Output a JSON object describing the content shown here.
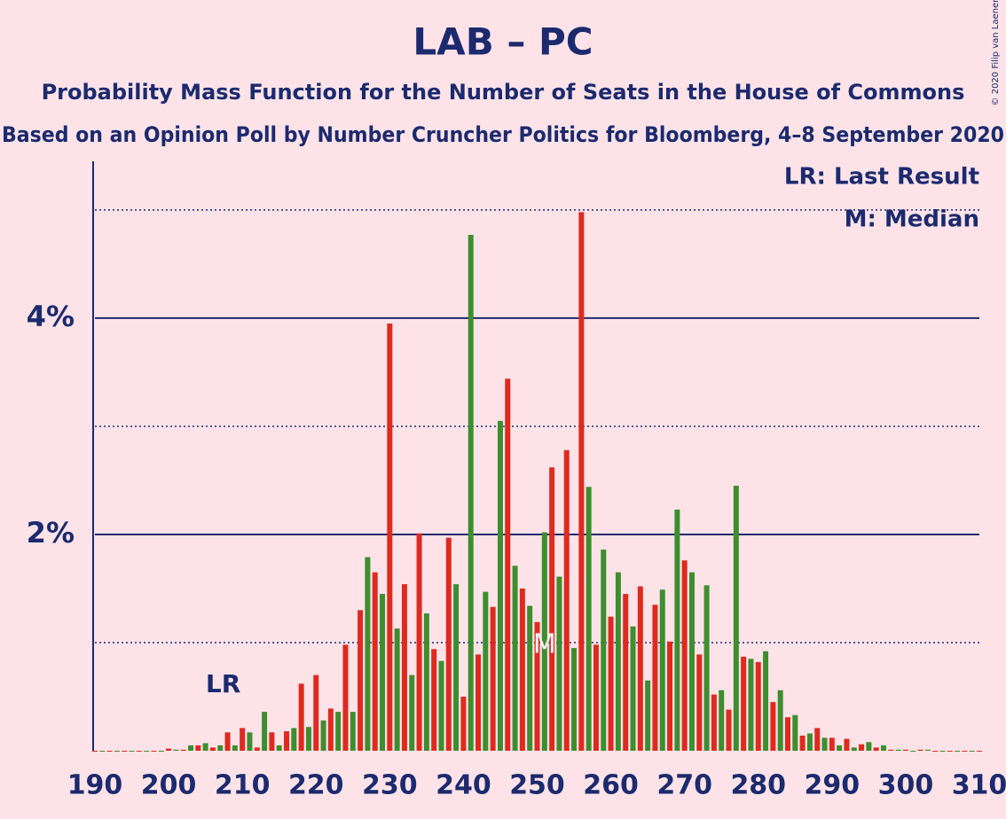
{
  "chart_data": {
    "type": "bar",
    "title": "LAB – PC",
    "subtitle": "Probability Mass Function for the Number of Seats in the House of Commons",
    "source": "Based on an Opinion Poll by Number Cruncher Politics for Bloomberg, 4–8 September 2020",
    "copyright": "© 2020 Filip van Laenen",
    "legend": [
      "LR: Last Result",
      "M: Median"
    ],
    "last_result": {
      "label": "LR",
      "seat": 205
    },
    "median": {
      "label": "M",
      "seat": 251
    },
    "bar_colors": [
      "#de2a1f",
      "#3d8e2f"
    ],
    "x": [
      190,
      191,
      192,
      193,
      194,
      195,
      196,
      197,
      198,
      199,
      200,
      201,
      202,
      203,
      204,
      205,
      206,
      207,
      208,
      209,
      210,
      211,
      212,
      213,
      214,
      215,
      216,
      217,
      218,
      219,
      220,
      221,
      222,
      223,
      224,
      225,
      226,
      227,
      228,
      229,
      230,
      231,
      232,
      233,
      234,
      235,
      236,
      237,
      238,
      239,
      240,
      241,
      242,
      243,
      244,
      245,
      246,
      247,
      248,
      249,
      250,
      251,
      252,
      253,
      254,
      255,
      256,
      257,
      258,
      259,
      260,
      261,
      262,
      263,
      264,
      265,
      266,
      267,
      268,
      269,
      270,
      271,
      272,
      273,
      274,
      275,
      276,
      277,
      278,
      279,
      280,
      281,
      282,
      283,
      284,
      285,
      286,
      287,
      288,
      289,
      290,
      291,
      292,
      293,
      294,
      295,
      296,
      297,
      298,
      299,
      300,
      301,
      302,
      303,
      304,
      305,
      306,
      307,
      308,
      309,
      310
    ],
    "values": [
      0,
      0,
      0,
      0,
      0,
      0,
      0,
      0,
      0,
      0,
      0.02,
      0.01,
      0.01,
      0.05,
      0.05,
      0.07,
      0.03,
      0.05,
      0.17,
      0.05,
      0.21,
      0.17,
      0.03,
      0.36,
      0.17,
      0.05,
      0.18,
      0.21,
      0.62,
      0.22,
      0.7,
      0.28,
      0.39,
      0.36,
      0.98,
      0.36,
      1.3,
      1.79,
      1.65,
      1.45,
      3.95,
      1.13,
      1.54,
      0.7,
      2.01,
      1.27,
      0.94,
      0.83,
      1.97,
      1.54,
      0.5,
      4.77,
      0.89,
      1.47,
      1.33,
      3.05,
      3.44,
      1.71,
      1.5,
      1.34,
      1.19,
      2.02,
      2.62,
      1.61,
      2.78,
      0.95,
      4.98,
      2.44,
      0.98,
      1.86,
      1.24,
      1.65,
      1.45,
      1.15,
      1.52,
      0.65,
      1.35,
      1.49,
      1.01,
      2.23,
      1.76,
      1.65,
      0.89,
      1.53,
      0.52,
      0.56,
      0.38,
      2.45,
      0.87,
      0.85,
      0.82,
      0.92,
      0.45,
      0.56,
      0.31,
      0.33,
      0.14,
      0.16,
      0.21,
      0.12,
      0.12,
      0.05,
      0.11,
      0.03,
      0.06,
      0.08,
      0.03,
      0.05,
      0.01,
      0.01,
      0.01,
      0,
      0.01,
      0.01,
      0,
      0,
      0,
      0,
      0,
      0,
      0
    ],
    "xlim": [
      190,
      310
    ],
    "xticks": [
      190,
      200,
      210,
      220,
      230,
      240,
      250,
      260,
      270,
      280,
      290,
      300,
      310
    ],
    "ylim": [
      0,
      5.45
    ],
    "yticks": [
      {
        "value": 2,
        "label": "2%"
      },
      {
        "value": 4,
        "label": "4%"
      }
    ],
    "dotted_grid": [
      1,
      3,
      5
    ]
  }
}
